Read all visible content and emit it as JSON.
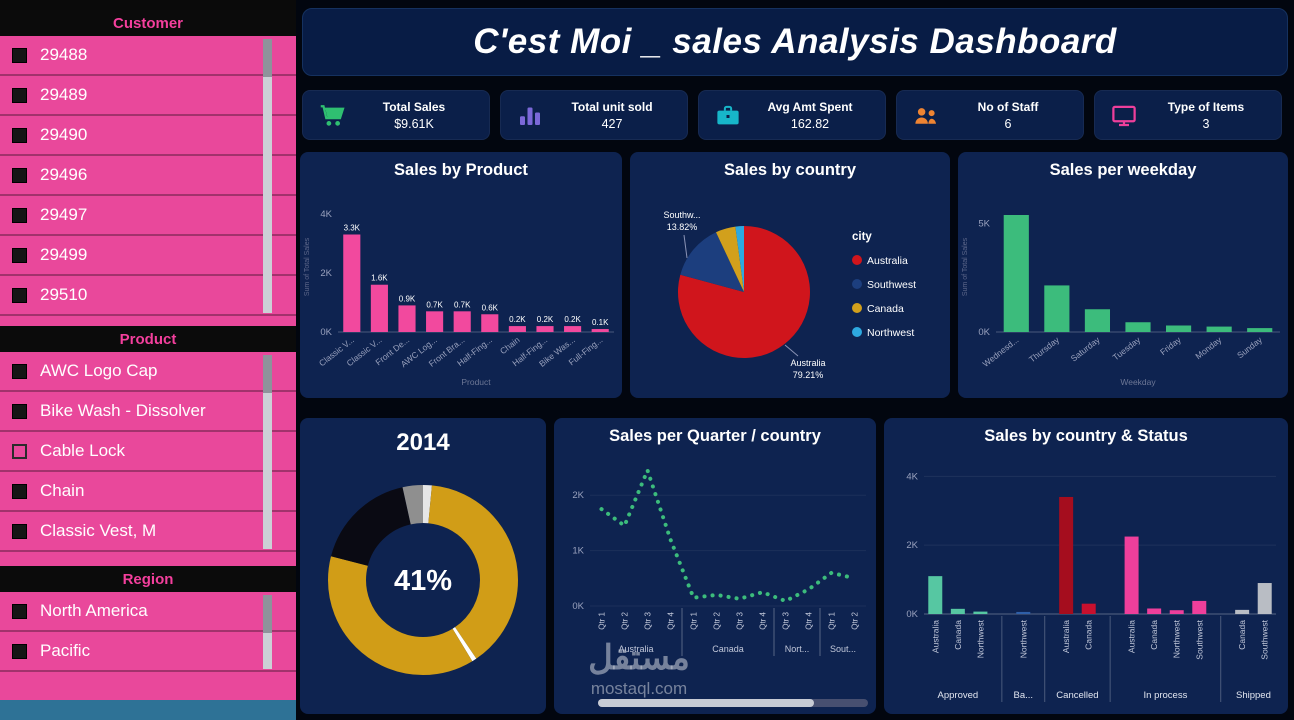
{
  "header": {
    "title": "C'est Moi _ sales Analysis Dashboard"
  },
  "sidebar": {
    "sections": [
      {
        "title": "Customer",
        "items": [
          {
            "label": "29488",
            "checked": true
          },
          {
            "label": "29489",
            "checked": true
          },
          {
            "label": "29490",
            "checked": true
          },
          {
            "label": "29496",
            "checked": true
          },
          {
            "label": "29497",
            "checked": true
          },
          {
            "label": "29499",
            "checked": true
          },
          {
            "label": "29510",
            "checked": true
          }
        ]
      },
      {
        "title": "Product",
        "items": [
          {
            "label": "AWC Logo Cap",
            "checked": true
          },
          {
            "label": "Bike Wash - Dissolver",
            "checked": true
          },
          {
            "label": "Cable Lock",
            "checked": false
          },
          {
            "label": "Chain",
            "checked": true
          },
          {
            "label": "Classic Vest, M",
            "checked": true
          }
        ]
      },
      {
        "title": "Region",
        "items": [
          {
            "label": "North America",
            "checked": true
          },
          {
            "label": "Pacific",
            "checked": true
          }
        ]
      }
    ]
  },
  "kpis": [
    {
      "label": "Total Sales",
      "value": "$9.61K",
      "icon": "cart-icon",
      "accent": "#2fbf71"
    },
    {
      "label": "Total unit sold",
      "value": "427",
      "icon": "bar-chart-icon",
      "accent": "#7b68d8"
    },
    {
      "label": "Avg Amt Spent",
      "value": "162.82",
      "icon": "briefcase-icon",
      "accent": "#17b6c9"
    },
    {
      "label": "No of Staff",
      "value": "6",
      "icon": "staff-icon",
      "accent": "#ef8432"
    },
    {
      "label": "Type of Items",
      "value": "3",
      "icon": "monitor-icon",
      "accent": "#ee3f9b"
    }
  ],
  "watermark": {
    "arabic": "مستقل",
    "domain": "mostaql.com"
  },
  "chart_data": [
    {
      "id": "sales-by-product",
      "type": "bar",
      "title": "Sales by Product",
      "categories": [
        "Classic V...",
        "Classic V...",
        "Front De...",
        "AWC Log...",
        "Front Bra...",
        "Half-Fing...",
        "Chain",
        "Half-Fing...",
        "Bike Was...",
        "Full-Fing..."
      ],
      "values": [
        3300,
        1600,
        900,
        700,
        700,
        600,
        200,
        200,
        200,
        100
      ],
      "labels": [
        "3.3K",
        "1.6K",
        "0.9K",
        "0.7K",
        "0.7K",
        "0.6K",
        "0.2K",
        "0.2K",
        "0.2K",
        "0.1K"
      ],
      "bar_color": "#f2499e",
      "yticks": [
        {
          "v": 0,
          "t": "0K"
        },
        {
          "v": 2000,
          "t": "2K"
        },
        {
          "v": 4000,
          "t": "4K"
        }
      ],
      "ylim": [
        0,
        4400
      ],
      "xlabel": "Product",
      "ylabel": "Sum of Total Sales"
    },
    {
      "id": "sales-by-country",
      "type": "pie",
      "title": "Sales by country",
      "legend_title": "city",
      "slices": [
        {
          "label": "Australia",
          "pct": 79.21,
          "color": "#d0151c"
        },
        {
          "label": "Southwest",
          "pct": 13.82,
          "color": "#1c3e7e"
        },
        {
          "label": "Canada",
          "pct": 4.9,
          "color": "#d2a01c"
        },
        {
          "label": "Northwest",
          "pct": 2.07,
          "color": "#2ea9e0"
        }
      ],
      "legend": [
        {
          "label": "Australia",
          "color": "#d0151c"
        },
        {
          "label": "Southwest",
          "color": "#1c3e7e"
        },
        {
          "label": "Canada",
          "color": "#d2a01c"
        },
        {
          "label": "Northwest",
          "color": "#2ea9e0"
        }
      ],
      "callouts": [
        {
          "line1": "Southw...",
          "line2": "13.82%"
        },
        {
          "line1": "Australia",
          "line2": "79.21%"
        }
      ]
    },
    {
      "id": "sales-per-weekday",
      "type": "bar",
      "title": "Sales per weekday",
      "categories": [
        "Wednesd...",
        "Thursday",
        "Saturday",
        "Tuesday",
        "Friday",
        "Monday",
        "Sunday"
      ],
      "values": [
        5400,
        2150,
        1050,
        450,
        300,
        250,
        180
      ],
      "bar_color": "#3cbc7c",
      "yticks": [
        {
          "v": 0,
          "t": "0K"
        },
        {
          "v": 5000,
          "t": "5K"
        }
      ],
      "ylim": [
        0,
        6000
      ],
      "xlabel": "Weekday",
      "ylabel": "Sum of Total Sales"
    },
    {
      "id": "year-2014-donut",
      "type": "donut",
      "title": "2014",
      "center_label": "41%",
      "segments": [
        {
          "value": 1.5,
          "color": "#e6e6e6"
        },
        {
          "value": 39,
          "color": "#d19d17"
        },
        {
          "value": 0.8,
          "color": "#ffffff"
        },
        {
          "value": 37.7,
          "color": "#d19d17"
        },
        {
          "value": 17.5,
          "color": "#0a0a13"
        },
        {
          "value": 3.5,
          "color": "#8f8f8f"
        }
      ]
    },
    {
      "id": "sales-per-quarter-country",
      "type": "line",
      "title": "Sales per Quarter / country",
      "x_labels": [
        "Qtr 1",
        "Qtr 2",
        "Qtr 3",
        "Qtr 4",
        "Qtr 1",
        "Qtr 2",
        "Qtr 3",
        "Qtr 4",
        "Qtr 3",
        "Qtr 4",
        "Qtr 1",
        "Qtr 2"
      ],
      "groups": [
        {
          "label": "Australia",
          "span": 4
        },
        {
          "label": "Canada",
          "span": 4
        },
        {
          "label": "Nort...",
          "span": 2
        },
        {
          "label": "Sout...",
          "span": 2
        }
      ],
      "values": [
        1750,
        1450,
        2450,
        1200,
        150,
        200,
        130,
        250,
        90,
        300,
        600,
        500
      ],
      "line_color": "#3cbc7c",
      "yticks": [
        {
          "v": 0,
          "t": "0K"
        },
        {
          "v": 1000,
          "t": "1K"
        },
        {
          "v": 2000,
          "t": "2K"
        }
      ],
      "ylim": [
        0,
        2600
      ]
    },
    {
      "id": "sales-by-country-status",
      "type": "grouped_bar",
      "title": "Sales by country & Status",
      "groups": [
        "Approved",
        "Ba...",
        "Cancelled",
        "In process",
        "Shipped"
      ],
      "bars": [
        {
          "x": "Australia",
          "group": "Approved",
          "value": 1100,
          "color": "#56c7a2"
        },
        {
          "x": "Canada",
          "group": "Approved",
          "value": 150,
          "color": "#56c7a2"
        },
        {
          "x": "Northwest",
          "group": "Approved",
          "value": 70,
          "color": "#56c7a2"
        },
        {
          "x": "Northwest",
          "group": "Ba...",
          "value": 60,
          "color": "#2f5fa8"
        },
        {
          "x": "Australia",
          "group": "Cancelled",
          "value": 3400,
          "color": "#a50d1e"
        },
        {
          "x": "Canada",
          "group": "Cancelled",
          "value": 300,
          "color": "#c8102e"
        },
        {
          "x": "Australia",
          "group": "In process",
          "value": 2250,
          "color": "#ee3f9b"
        },
        {
          "x": "Canada",
          "group": "In process",
          "value": 160,
          "color": "#ee3f9b"
        },
        {
          "x": "Northwest",
          "group": "In process",
          "value": 110,
          "color": "#ee3f9b"
        },
        {
          "x": "Southwest",
          "group": "In process",
          "value": 380,
          "color": "#ee3f9b"
        },
        {
          "x": "Canada",
          "group": "Shipped",
          "value": 120,
          "color": "#b9bdc4"
        },
        {
          "x": "Southwest",
          "group": "Shipped",
          "value": 900,
          "color": "#b9bdc4"
        }
      ],
      "yticks": [
        {
          "v": 0,
          "t": "0K"
        },
        {
          "v": 2000,
          "t": "2K"
        },
        {
          "v": 4000,
          "t": "4K"
        }
      ],
      "ylim": [
        0,
        4300
      ]
    }
  ]
}
